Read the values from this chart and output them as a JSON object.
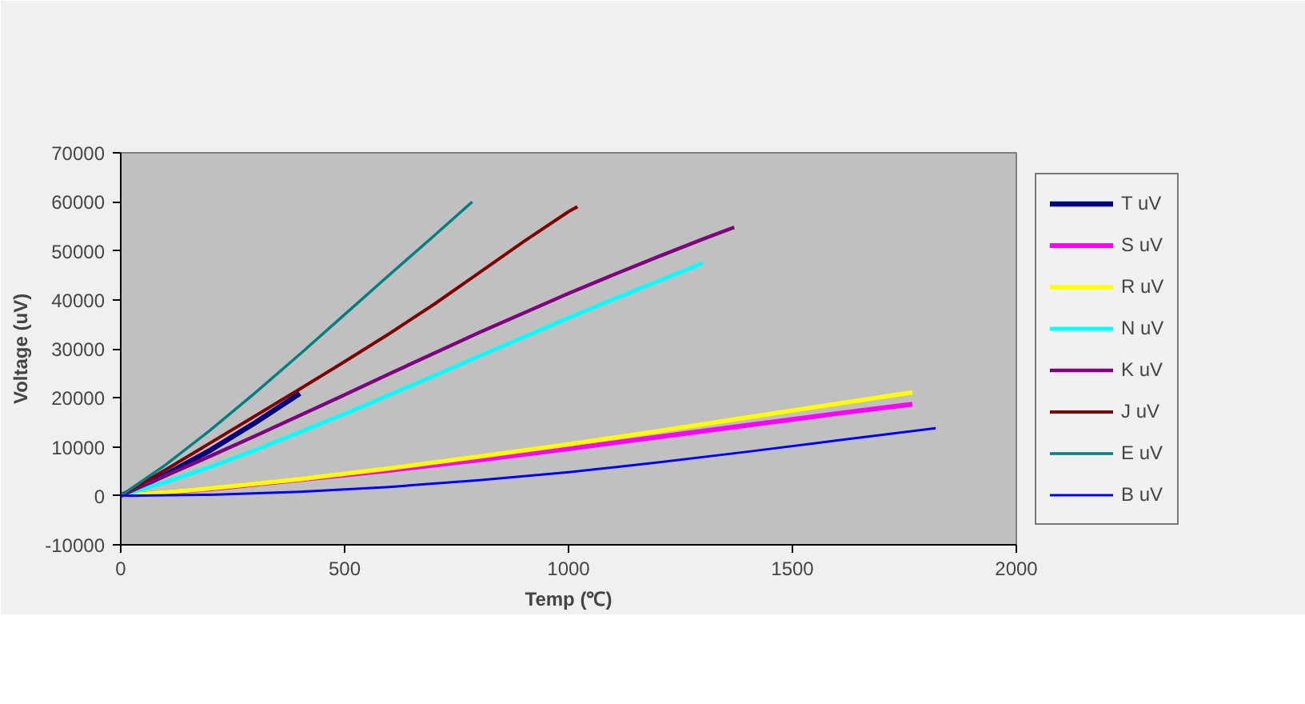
{
  "chart_data": {
    "type": "line",
    "xlabel": "Temp (℃)",
    "ylabel": "Voltage (uV)",
    "xlim": [
      0,
      2000
    ],
    "xticks": [
      0,
      500,
      1000,
      1500,
      2000
    ],
    "ylim": [
      -10000,
      70000
    ],
    "yticks": [
      -10000,
      0,
      10000,
      20000,
      30000,
      40000,
      50000,
      60000,
      70000
    ],
    "grid": false,
    "legend": "right",
    "marker": "none",
    "line_style": "solid",
    "series": [
      {
        "name": "T uV",
        "color": "#000080",
        "x": [
          0,
          100,
          200,
          300,
          400
        ],
        "values": [
          0,
          4300,
          9300,
          14900,
          20900
        ]
      },
      {
        "name": "S uV",
        "color": "#ff00ff",
        "x": [
          0,
          200,
          400,
          600,
          800,
          1000,
          1200,
          1400,
          1600,
          1768
        ],
        "values": [
          0,
          1400,
          3300,
          5200,
          7300,
          9600,
          12000,
          14400,
          16800,
          18700
        ]
      },
      {
        "name": "R uV",
        "color": "#ffff00",
        "x": [
          0,
          200,
          400,
          600,
          800,
          1000,
          1200,
          1400,
          1600,
          1768
        ],
        "values": [
          0,
          1500,
          3400,
          5600,
          8000,
          10500,
          13200,
          16000,
          18800,
          21100
        ]
      },
      {
        "name": "N uV",
        "color": "#00ffff",
        "x": [
          0,
          100,
          200,
          300,
          400,
          500,
          600,
          700,
          800,
          900,
          1000,
          1100,
          1200,
          1300
        ],
        "values": [
          0,
          2800,
          5900,
          9300,
          13000,
          16700,
          20600,
          24500,
          28500,
          32400,
          36300,
          40100,
          43800,
          47500
        ]
      },
      {
        "name": "K uV",
        "color": "#800080",
        "x": [
          0,
          100,
          200,
          300,
          400,
          500,
          600,
          700,
          800,
          900,
          1000,
          1100,
          1200,
          1300,
          1370
        ],
        "values": [
          0,
          4100,
          8100,
          12200,
          16400,
          20600,
          24900,
          29100,
          33300,
          37300,
          41300,
          45100,
          48800,
          52400,
          54800
        ]
      },
      {
        "name": "J uV",
        "color": "#800000",
        "x": [
          0,
          100,
          200,
          300,
          400,
          500,
          600,
          700,
          800,
          900,
          1000,
          1020
        ],
        "values": [
          0,
          5300,
          10800,
          16300,
          21800,
          27400,
          33100,
          39100,
          45500,
          51900,
          58000,
          59000
        ]
      },
      {
        "name": "E uV",
        "color": "#008080",
        "x": [
          0,
          100,
          200,
          300,
          400,
          500,
          600,
          700,
          785
        ],
        "values": [
          0,
          6300,
          13400,
          21000,
          28900,
          37000,
          45100,
          53100,
          60000
        ]
      },
      {
        "name": "B uV",
        "color": "#0000ff",
        "x": [
          0,
          200,
          400,
          600,
          800,
          1000,
          1200,
          1400,
          1600,
          1820
        ],
        "values": [
          0,
          200,
          800,
          1800,
          3200,
          4800,
          6800,
          9000,
          11300,
          13800
        ]
      }
    ]
  }
}
